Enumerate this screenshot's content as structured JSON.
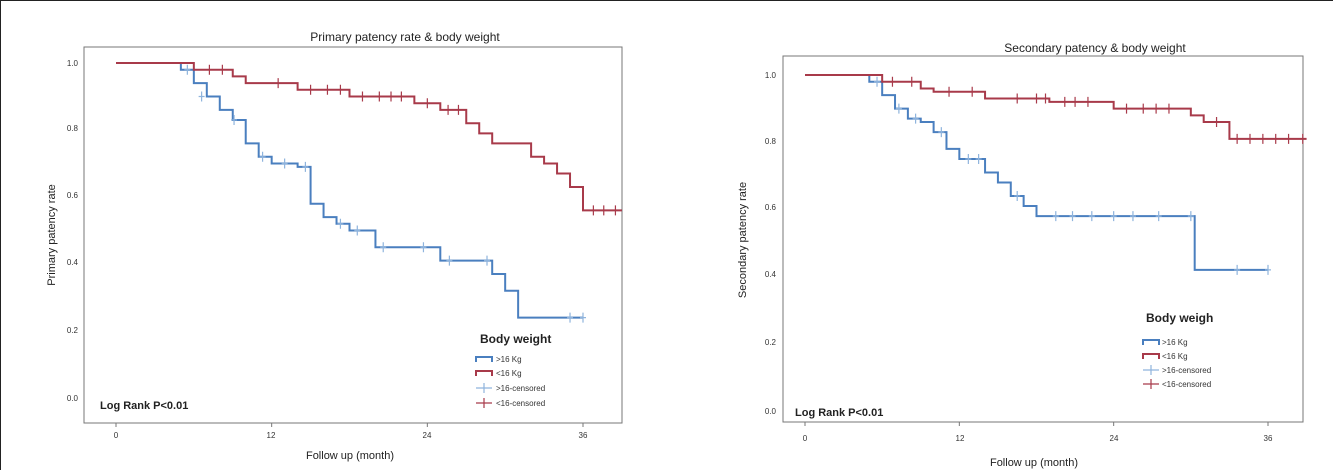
{
  "chart_data": [
    {
      "type": "line",
      "title": "Primary patency rate & body weight",
      "xlabel": "Follow up (month)",
      "ylabel": "Primary patency rate",
      "xlim": [
        -2,
        40
      ],
      "ylim": [
        -0.02,
        1.06
      ],
      "xticks": [
        0,
        12,
        24,
        36
      ],
      "yticks": [
        0.0,
        0.2,
        0.4,
        0.6,
        0.8,
        1.0
      ],
      "ytick_labels": [
        "0.0",
        "0.2",
        "0.4",
        "0.6",
        "0.8",
        "1.0"
      ],
      "grid": false,
      "annotation": "Log Rank P<0.01",
      "legend_title": "Body weight",
      "legend_position": "bottom-right",
      "legend": [
        ">16 Kg",
        "<16 Kg",
        ">16-censored",
        "<16-censored"
      ],
      "series": [
        {
          "name": ">16 Kg",
          "color": "#4a7fbf",
          "steps": [
            [
              0,
              1.0
            ],
            [
              5,
              0.98
            ],
            [
              6,
              0.94
            ],
            [
              7,
              0.9
            ],
            [
              8,
              0.86
            ],
            [
              9,
              0.83
            ],
            [
              10,
              0.76
            ],
            [
              11,
              0.72
            ],
            [
              12,
              0.7
            ],
            [
              14,
              0.69
            ],
            [
              15,
              0.58
            ],
            [
              16,
              0.54
            ],
            [
              17,
              0.52
            ],
            [
              18,
              0.5
            ],
            [
              20,
              0.45
            ],
            [
              23,
              0.45
            ],
            [
              25,
              0.41
            ],
            [
              28,
              0.41
            ],
            [
              29,
              0.37
            ],
            [
              30,
              0.32
            ],
            [
              31,
              0.24
            ],
            [
              36,
              0.24
            ]
          ],
          "censored": [
            [
              5.5,
              0.98
            ],
            [
              6.6,
              0.9
            ],
            [
              9.1,
              0.83
            ],
            [
              11.3,
              0.72
            ],
            [
              13,
              0.7
            ],
            [
              14.6,
              0.69
            ],
            [
              17.3,
              0.52
            ],
            [
              18.6,
              0.5
            ],
            [
              20.6,
              0.45
            ],
            [
              23.7,
              0.45
            ],
            [
              25.7,
              0.41
            ],
            [
              28.6,
              0.41
            ],
            [
              35,
              0.24
            ],
            [
              36,
              0.24
            ]
          ]
        },
        {
          "name": "<16 Kg",
          "color": "#a83a4a",
          "steps": [
            [
              0,
              1.0
            ],
            [
              6,
              0.98
            ],
            [
              9,
              0.96
            ],
            [
              10,
              0.94
            ],
            [
              14,
              0.92
            ],
            [
              17,
              0.92
            ],
            [
              18,
              0.9
            ],
            [
              23,
              0.88
            ],
            [
              25,
              0.86
            ],
            [
              27,
              0.82
            ],
            [
              28,
              0.79
            ],
            [
              29,
              0.76
            ],
            [
              32,
              0.72
            ],
            [
              33,
              0.7
            ],
            [
              34,
              0.67
            ],
            [
              35,
              0.63
            ],
            [
              36,
              0.56
            ],
            [
              39,
              0.56
            ]
          ],
          "censored": [
            [
              7.2,
              0.98
            ],
            [
              8.2,
              0.98
            ],
            [
              12.5,
              0.94
            ],
            [
              15,
              0.92
            ],
            [
              16.3,
              0.92
            ],
            [
              17.3,
              0.92
            ],
            [
              19,
              0.9
            ],
            [
              20.3,
              0.9
            ],
            [
              21.2,
              0.9
            ],
            [
              22,
              0.9
            ],
            [
              24,
              0.88
            ],
            [
              25.6,
              0.86
            ],
            [
              26.4,
              0.86
            ],
            [
              36.8,
              0.56
            ],
            [
              37.6,
              0.56
            ],
            [
              38.5,
              0.56
            ]
          ]
        }
      ]
    },
    {
      "type": "line",
      "title": "Secondary patency & body weight",
      "xlabel": "Follow up (month)",
      "ylabel": "Secondary patency rate",
      "xlim": [
        -2,
        40
      ],
      "ylim": [
        -0.02,
        1.06
      ],
      "xticks": [
        0,
        12,
        24,
        36
      ],
      "yticks": [
        0.0,
        0.2,
        0.4,
        0.6,
        0.8,
        1.0
      ],
      "ytick_labels": [
        "0.0",
        "0.2",
        "0.4",
        "0.6",
        "0.8",
        "1.0"
      ],
      "grid": false,
      "annotation": "Log Rank P<0.01",
      "legend_title": "Body weigh",
      "legend_position": "bottom-right",
      "legend": [
        ">16 Kg",
        "<16 Kg",
        ">16-censored",
        "<16-censored"
      ],
      "series": [
        {
          "name": ">16 Kg",
          "color": "#4a7fbf",
          "steps": [
            [
              0,
              1.0
            ],
            [
              5,
              0.98
            ],
            [
              6,
              0.94
            ],
            [
              7,
              0.9
            ],
            [
              8,
              0.87
            ],
            [
              9,
              0.86
            ],
            [
              10,
              0.83
            ],
            [
              11,
              0.78
            ],
            [
              12,
              0.75
            ],
            [
              14,
              0.71
            ],
            [
              15,
              0.68
            ],
            [
              16,
              0.64
            ],
            [
              17,
              0.61
            ],
            [
              18,
              0.58
            ],
            [
              30,
              0.58
            ],
            [
              30.3,
              0.42
            ],
            [
              36,
              0.42
            ]
          ],
          "censored": [
            [
              5.6,
              0.98
            ],
            [
              7.3,
              0.9
            ],
            [
              8.6,
              0.87
            ],
            [
              10.6,
              0.83
            ],
            [
              12.7,
              0.75
            ],
            [
              13.5,
              0.75
            ],
            [
              16.5,
              0.64
            ],
            [
              19.5,
              0.58
            ],
            [
              20.8,
              0.58
            ],
            [
              22.3,
              0.58
            ],
            [
              24,
              0.58
            ],
            [
              25.5,
              0.58
            ],
            [
              27.5,
              0.58
            ],
            [
              30,
              0.58
            ],
            [
              33.6,
              0.42
            ],
            [
              36,
              0.42
            ]
          ]
        },
        {
          "name": "<16 Kg",
          "color": "#a83a4a",
          "steps": [
            [
              0,
              1.0
            ],
            [
              6,
              0.98
            ],
            [
              9,
              0.96
            ],
            [
              10,
              0.95
            ],
            [
              14,
              0.93
            ],
            [
              18,
              0.93
            ],
            [
              19,
              0.92
            ],
            [
              24,
              0.9
            ],
            [
              29,
              0.9
            ],
            [
              30,
              0.88
            ],
            [
              31,
              0.86
            ],
            [
              33,
              0.81
            ],
            [
              39,
              0.81
            ]
          ],
          "censored": [
            [
              6.8,
              0.98
            ],
            [
              8.3,
              0.98
            ],
            [
              11.2,
              0.95
            ],
            [
              13,
              0.95
            ],
            [
              16.5,
              0.93
            ],
            [
              18,
              0.93
            ],
            [
              18.7,
              0.93
            ],
            [
              20.2,
              0.92
            ],
            [
              21,
              0.92
            ],
            [
              22,
              0.92
            ],
            [
              25,
              0.9
            ],
            [
              26.3,
              0.9
            ],
            [
              27.3,
              0.9
            ],
            [
              28.3,
              0.9
            ],
            [
              32,
              0.86
            ],
            [
              33.6,
              0.81
            ],
            [
              34.6,
              0.81
            ],
            [
              35.6,
              0.81
            ],
            [
              36.6,
              0.81
            ],
            [
              37.6,
              0.81
            ],
            [
              38.7,
              0.81
            ]
          ]
        }
      ]
    }
  ]
}
